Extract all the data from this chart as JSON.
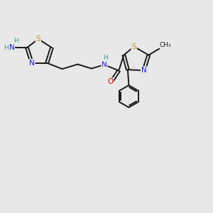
{
  "bg_color": "#e8e8e8",
  "bond_color": "#1a1a1a",
  "S_color": "#b8a000",
  "N_color": "#1a1ad0",
  "O_color": "#cc0000",
  "C_color": "#1a1a1a",
  "H_color": "#4a9090",
  "fig_size": [
    3.0,
    3.0
  ],
  "dpi": 100,
  "xlim": [
    0,
    10
  ],
  "ylim": [
    0,
    10
  ]
}
